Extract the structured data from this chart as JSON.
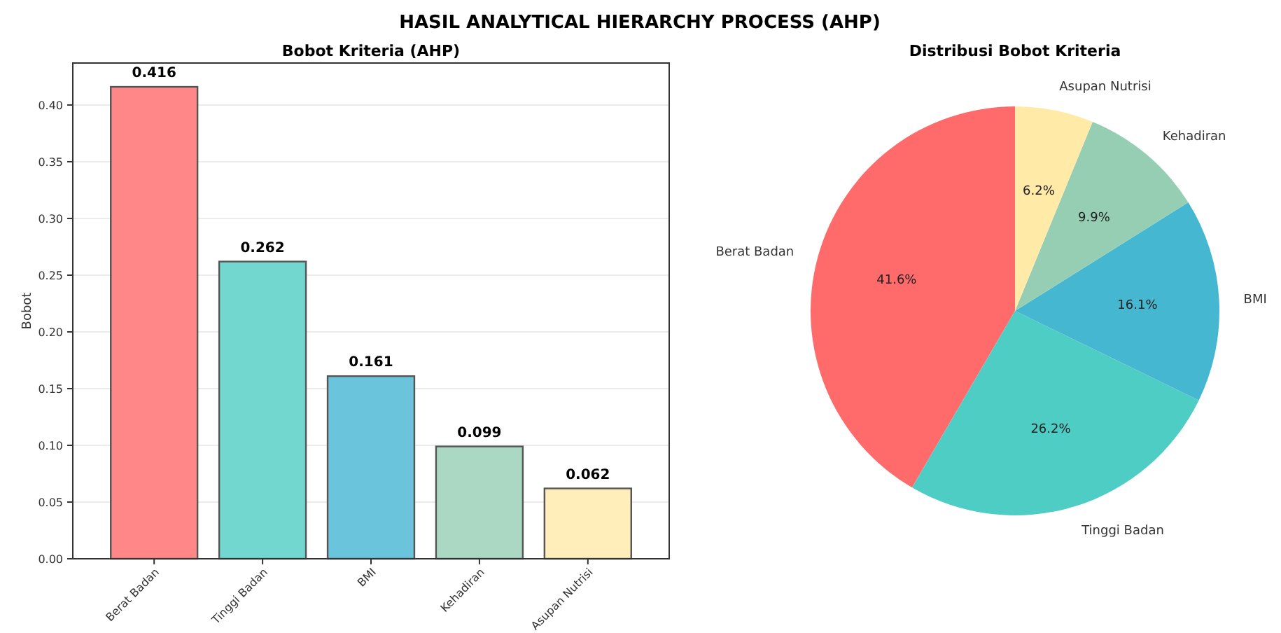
{
  "chart_data": [
    {
      "type": "bar",
      "title": "HASIL ANALYTICAL HIERARCHY PROCESS (AHP)",
      "subtitle": "Bobot Kriteria (AHP)",
      "ylabel": "Bobot",
      "categories": [
        "Berat Badan",
        "Tinggi Badan",
        "BMI",
        "Kehadiran",
        "Asupan Nutrisi"
      ],
      "values": [
        0.416,
        0.262,
        0.161,
        0.099,
        0.062
      ],
      "colors": [
        "#ff8787",
        "#71d7cf",
        "#6ac5dc",
        "#abd8c3",
        "#ffeeb9"
      ],
      "ylim": [
        0,
        0.437
      ],
      "yticks": [
        {
          "value": 0,
          "label": "0.00"
        },
        {
          "value": 0.05,
          "label": "0.05"
        },
        {
          "value": 0.1,
          "label": "0.10"
        },
        {
          "value": 0.15,
          "label": "0.15"
        },
        {
          "value": 0.2,
          "label": "0.20"
        },
        {
          "value": 0.25,
          "label": "0.25"
        },
        {
          "value": 0.3,
          "label": "0.30"
        },
        {
          "value": 0.35,
          "label": "0.35"
        },
        {
          "value": 0.4,
          "label": "0.40"
        }
      ],
      "grid": "y",
      "data_labels": true
    },
    {
      "type": "pie",
      "title": "Distribusi Bobot Kriteria",
      "categories": [
        "Berat Badan",
        "Tinggi Badan",
        "BMI",
        "Kehadiran",
        "Asupan Nutrisi"
      ],
      "values": [
        41.6,
        26.2,
        16.1,
        9.9,
        6.2
      ],
      "value_labels": [
        "41.6%",
        "26.2%",
        "16.1%",
        "9.9%",
        "6.2%"
      ],
      "colors": [
        "#ff6b6b",
        "#4ecdc4",
        "#45b7d1",
        "#96ceb4",
        "#ffeaa7"
      ]
    }
  ]
}
